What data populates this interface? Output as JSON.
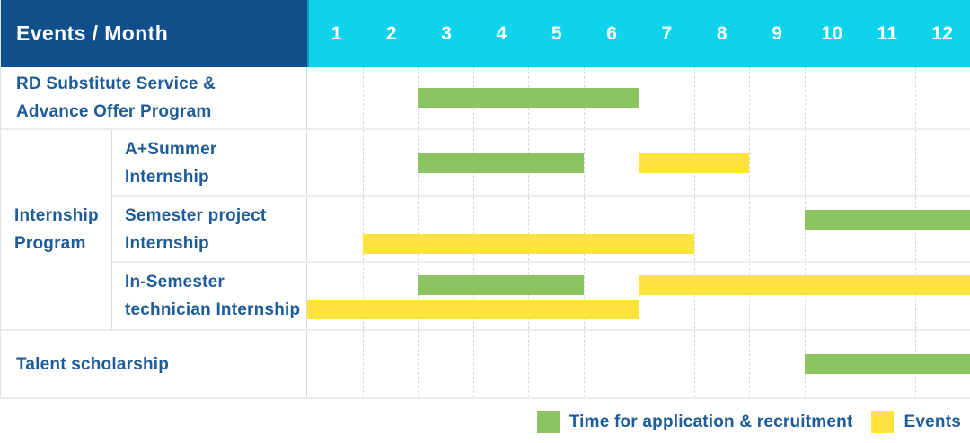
{
  "header": {
    "corner_label": "Events / Month",
    "months": [
      "1",
      "2",
      "3",
      "4",
      "5",
      "6",
      "7",
      "8",
      "9",
      "10",
      "11",
      "12"
    ]
  },
  "colors": {
    "header_bg": "#104f8c",
    "month_header_bg": "#0ed3ec",
    "header_text": "#ffffff",
    "label_text": "#1d5c99",
    "application_recruitment": "#8bc462",
    "events": "#ffe33d",
    "gridline": "#d9d9d9"
  },
  "chart_data": {
    "type": "gantt",
    "title": "Events / Month",
    "x_axis": {
      "unit": "month",
      "ticks": [
        "1",
        "2",
        "3",
        "4",
        "5",
        "6",
        "7",
        "8",
        "9",
        "10",
        "11",
        "12"
      ],
      "range": [
        1,
        12
      ]
    },
    "series": [
      {
        "id": "application_recruitment",
        "label": "Time for application & recruitment",
        "color": "#8bc462"
      },
      {
        "id": "events",
        "label": "Events",
        "color": "#ffe33d"
      }
    ],
    "rows": [
      {
        "label": "RD Substitute Service &\nAdvance Offer Program",
        "lanes": 1,
        "bars": [
          {
            "series": "application_recruitment",
            "start_month": 3,
            "end_month": 6,
            "lane": 0
          }
        ]
      },
      {
        "group_label": "Internship\nProgram",
        "children": [
          {
            "label": "A+Summer\nInternship",
            "lanes": 1,
            "bars": [
              {
                "series": "application_recruitment",
                "start_month": 3,
                "end_month": 5,
                "lane": 0
              },
              {
                "series": "events",
                "start_month": 7,
                "end_month": 8,
                "lane": 0
              }
            ]
          },
          {
            "label": "Semester project\nInternship",
            "lanes": 2,
            "bars": [
              {
                "series": "application_recruitment",
                "start_month": 10,
                "end_month": 12,
                "lane": 0
              },
              {
                "series": "events",
                "start_month": 2,
                "end_month": 7,
                "lane": 1
              }
            ]
          },
          {
            "label": "In-Semester\ntechnician Internship",
            "lanes": 2,
            "bars": [
              {
                "series": "application_recruitment",
                "start_month": 3,
                "end_month": 5,
                "lane": 0
              },
              {
                "series": "events",
                "start_month": 7,
                "end_month": 12,
                "lane": 0
              },
              {
                "series": "events",
                "start_month": 1,
                "end_month": 6,
                "lane": 1
              }
            ]
          }
        ]
      },
      {
        "label": "Talent scholarship",
        "lanes": 1,
        "bars": [
          {
            "series": "application_recruitment",
            "start_month": 10,
            "end_month": 12,
            "lane": 0
          }
        ]
      }
    ],
    "legend": [
      {
        "series": "application_recruitment",
        "label": "Time for application & recruitment"
      },
      {
        "series": "events",
        "label": "Events"
      }
    ]
  }
}
